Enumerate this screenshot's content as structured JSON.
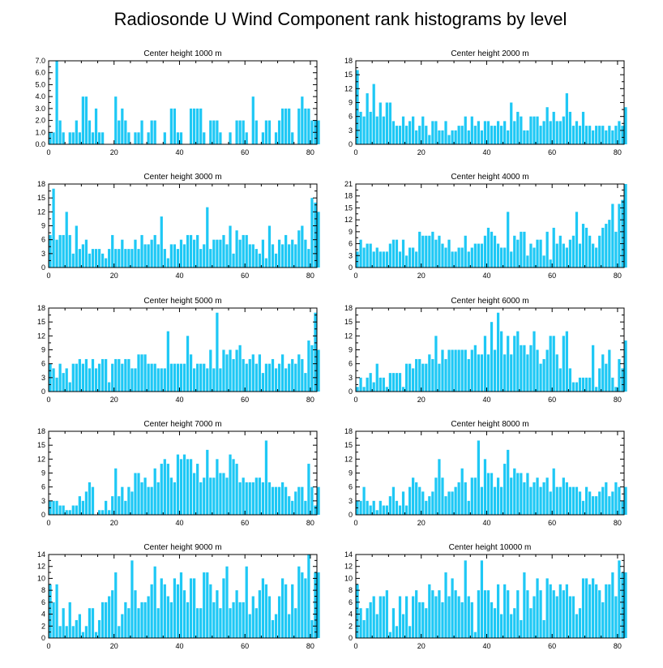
{
  "title": "Radiosonde U Wind Component rank histograms by level",
  "colors": {
    "bar": "#1ec8f5",
    "axis": "#000000"
  },
  "chart_data": [
    {
      "type": "bar",
      "title": "Center height 1000 m",
      "xlim": [
        0,
        82
      ],
      "ylim": [
        0,
        7
      ],
      "xticks": [
        0,
        20,
        40,
        60,
        80
      ],
      "yticks": [
        0,
        1,
        2,
        3,
        4,
        5,
        6,
        7
      ],
      "ytick_labels": [
        "0.0",
        "1.0",
        "2.0",
        "3.0",
        "4.0",
        "5.0",
        "6.0",
        "7.0"
      ],
      "values": [
        1,
        1,
        7,
        2,
        1,
        0,
        1,
        1,
        2,
        1,
        4,
        4,
        2,
        1,
        3,
        1,
        1,
        0,
        0,
        0,
        4,
        2,
        3,
        2,
        1,
        0,
        1,
        1,
        2,
        0,
        1,
        2,
        2,
        0,
        0,
        1,
        0,
        3,
        3,
        1,
        1,
        0,
        0,
        3,
        3,
        3,
        3,
        1,
        0,
        2,
        2,
        2,
        1,
        0,
        0,
        1,
        0,
        2,
        2,
        2,
        1,
        0,
        4,
        2,
        0,
        1,
        2,
        2,
        0,
        1,
        2,
        3,
        3,
        3,
        1,
        0,
        3,
        4,
        3,
        3,
        2,
        2,
        2
      ]
    },
    {
      "type": "bar",
      "title": "Center height 2000 m",
      "xlim": [
        0,
        82
      ],
      "ylim": [
        0,
        18
      ],
      "xticks": [
        0,
        20,
        40,
        60,
        80
      ],
      "yticks": [
        0,
        3,
        6,
        9,
        12,
        15,
        18
      ],
      "values": [
        16,
        7,
        6,
        11,
        7,
        13,
        6,
        9,
        6,
        9,
        9,
        5,
        4,
        4,
        6,
        4,
        5,
        6,
        3,
        4,
        6,
        4,
        2,
        5,
        5,
        3,
        3,
        5,
        2,
        3,
        3,
        4,
        4,
        6,
        3,
        6,
        4,
        5,
        3,
        5,
        5,
        4,
        4,
        5,
        4,
        5,
        3,
        9,
        5,
        7,
        6,
        3,
        3,
        6,
        6,
        6,
        4,
        5,
        8,
        5,
        7,
        5,
        5,
        6,
        11,
        7,
        4,
        5,
        4,
        7,
        4,
        4,
        3,
        4,
        4,
        4,
        3,
        4,
        3,
        4,
        5,
        4,
        8
      ]
    },
    {
      "type": "bar",
      "title": "Center height 3000 m",
      "xlim": [
        0,
        82
      ],
      "ylim": [
        0,
        18
      ],
      "xticks": [
        0,
        20,
        40,
        60,
        80
      ],
      "yticks": [
        0,
        3,
        6,
        9,
        12,
        15,
        18
      ],
      "values": [
        7,
        17,
        6,
        7,
        7,
        12,
        7,
        3,
        9,
        4,
        5,
        6,
        3,
        4,
        4,
        4,
        3,
        2,
        4,
        7,
        4,
        4,
        6,
        4,
        4,
        4,
        6,
        4,
        7,
        5,
        5,
        6,
        7,
        5,
        11,
        4,
        2,
        5,
        5,
        4,
        6,
        5,
        7,
        7,
        6,
        7,
        4,
        5,
        13,
        4,
        6,
        6,
        6,
        7,
        5,
        9,
        3,
        8,
        6,
        7,
        7,
        5,
        5,
        4,
        3,
        6,
        2,
        9,
        5,
        3,
        6,
        5,
        7,
        5,
        6,
        5,
        8,
        9,
        6,
        4,
        15,
        14,
        12
      ]
    },
    {
      "type": "bar",
      "title": "Center height 4000 m",
      "xlim": [
        0,
        82
      ],
      "ylim": [
        0,
        21
      ],
      "xticks": [
        0,
        20,
        40,
        60,
        80
      ],
      "yticks": [
        0,
        3,
        6,
        9,
        12,
        15,
        18,
        21
      ],
      "values": [
        4,
        7,
        5,
        6,
        6,
        4,
        5,
        4,
        4,
        4,
        6,
        7,
        7,
        4,
        7,
        3,
        5,
        5,
        4,
        9,
        8,
        8,
        8,
        9,
        7,
        8,
        6,
        5,
        7,
        4,
        4,
        5,
        5,
        8,
        4,
        5,
        6,
        6,
        6,
        8,
        10,
        9,
        8,
        6,
        5,
        5,
        14,
        4,
        8,
        7,
        9,
        9,
        3,
        6,
        5,
        7,
        7,
        3,
        9,
        2,
        10,
        6,
        8,
        6,
        5,
        7,
        8,
        14,
        6,
        11,
        10,
        8,
        6,
        5,
        8,
        10,
        11,
        12,
        16,
        9,
        16,
        17,
        21
      ]
    },
    {
      "type": "bar",
      "title": "Center height 5000 m",
      "xlim": [
        0,
        82
      ],
      "ylim": [
        0,
        18
      ],
      "xticks": [
        0,
        20,
        40,
        60,
        80
      ],
      "yticks": [
        0,
        3,
        6,
        9,
        12,
        15,
        18
      ],
      "values": [
        6,
        5,
        3,
        6,
        4,
        5,
        2,
        6,
        6,
        7,
        6,
        7,
        5,
        7,
        5,
        6,
        7,
        7,
        2,
        6,
        7,
        7,
        6,
        7,
        7,
        5,
        5,
        8,
        8,
        8,
        6,
        6,
        6,
        5,
        5,
        5,
        13,
        6,
        6,
        6,
        6,
        6,
        12,
        8,
        5,
        6,
        6,
        6,
        5,
        9,
        5,
        17,
        5,
        9,
        8,
        9,
        7,
        9,
        10,
        7,
        6,
        7,
        8,
        6,
        8,
        4,
        6,
        6,
        7,
        5,
        6,
        8,
        5,
        6,
        7,
        6,
        8,
        7,
        4,
        11,
        10,
        17,
        9
      ]
    },
    {
      "type": "bar",
      "title": "Center height 6000 m",
      "xlim": [
        0,
        82
      ],
      "ylim": [
        0,
        18
      ],
      "xticks": [
        0,
        20,
        40,
        60,
        80
      ],
      "yticks": [
        0,
        3,
        6,
        9,
        12,
        15,
        18
      ],
      "values": [
        1,
        3,
        1,
        3,
        4,
        2,
        6,
        3,
        3,
        1,
        4,
        4,
        4,
        4,
        1,
        6,
        6,
        5,
        7,
        7,
        6,
        6,
        8,
        7,
        12,
        6,
        9,
        7,
        9,
        9,
        9,
        9,
        9,
        9,
        7,
        9,
        10,
        8,
        8,
        12,
        8,
        15,
        9,
        17,
        13,
        8,
        12,
        8,
        12,
        13,
        10,
        10,
        8,
        10,
        13,
        9,
        6,
        7,
        9,
        12,
        12,
        8,
        5,
        12,
        13,
        5,
        2,
        2,
        3,
        3,
        3,
        3,
        10,
        1,
        5,
        8,
        6,
        9,
        3,
        1,
        7,
        5,
        11
      ]
    },
    {
      "type": "bar",
      "title": "Center height 7000 m",
      "xlim": [
        0,
        82
      ],
      "ylim": [
        0,
        18
      ],
      "xticks": [
        0,
        20,
        40,
        60,
        80
      ],
      "yticks": [
        0,
        3,
        6,
        9,
        12,
        15,
        18
      ],
      "values": [
        3,
        3,
        3,
        2,
        2,
        1,
        1,
        2,
        2,
        4,
        3,
        5,
        7,
        6,
        0,
        1,
        1,
        3,
        1,
        4,
        10,
        4,
        6,
        3,
        6,
        5,
        9,
        9,
        7,
        8,
        6,
        6,
        10,
        7,
        11,
        12,
        11,
        8,
        7,
        13,
        12,
        13,
        12,
        12,
        9,
        11,
        7,
        8,
        14,
        8,
        8,
        12,
        9,
        9,
        8,
        13,
        12,
        11,
        7,
        8,
        7,
        7,
        7,
        8,
        8,
        7,
        16,
        7,
        6,
        6,
        6,
        7,
        6,
        4,
        3,
        5,
        6,
        6,
        3,
        11,
        6,
        2,
        6
      ]
    },
    {
      "type": "bar",
      "title": "Center height 8000 m",
      "xlim": [
        0,
        82
      ],
      "ylim": [
        0,
        18
      ],
      "xticks": [
        0,
        20,
        40,
        60,
        80
      ],
      "yticks": [
        0,
        3,
        6,
        9,
        12,
        15,
        18
      ],
      "values": [
        3,
        3,
        6,
        3,
        2,
        3,
        1,
        3,
        2,
        2,
        4,
        6,
        3,
        2,
        5,
        2,
        6,
        8,
        7,
        6,
        5,
        3,
        4,
        5,
        8,
        12,
        8,
        4,
        5,
        5,
        6,
        7,
        10,
        7,
        3,
        8,
        8,
        16,
        6,
        12,
        9,
        9,
        6,
        8,
        6,
        11,
        14,
        8,
        10,
        9,
        9,
        7,
        9,
        6,
        7,
        8,
        6,
        7,
        8,
        5,
        10,
        6,
        6,
        8,
        7,
        6,
        6,
        6,
        5,
        3,
        6,
        5,
        4,
        4,
        5,
        6,
        7,
        4,
        5,
        7,
        6,
        3,
        6
      ]
    },
    {
      "type": "bar",
      "title": "Center height 9000 m",
      "xlim": [
        0,
        82
      ],
      "ylim": [
        0,
        14
      ],
      "xticks": [
        0,
        20,
        40,
        60,
        80
      ],
      "yticks": [
        0,
        2,
        4,
        6,
        8,
        10,
        12,
        14
      ],
      "values": [
        9,
        6,
        9,
        2,
        5,
        2,
        6,
        2,
        3,
        4,
        1,
        2,
        5,
        5,
        1,
        3,
        6,
        6,
        7,
        8,
        11,
        2,
        4,
        6,
        5,
        13,
        8,
        5,
        6,
        6,
        7,
        9,
        12,
        5,
        10,
        9,
        7,
        6,
        10,
        9,
        11,
        8,
        6,
        10,
        10,
        5,
        5,
        11,
        11,
        9,
        6,
        8,
        5,
        10,
        12,
        5,
        6,
        8,
        6,
        6,
        12,
        4,
        7,
        5,
        8,
        10,
        9,
        7,
        3,
        4,
        7,
        10,
        9,
        4,
        9,
        5,
        12,
        11,
        10,
        14,
        3,
        11,
        11
      ]
    },
    {
      "type": "bar",
      "title": "Center height 10000 m",
      "xlim": [
        0,
        82
      ],
      "ylim": [
        0,
        14
      ],
      "xticks": [
        0,
        20,
        40,
        60,
        80
      ],
      "yticks": [
        0,
        2,
        4,
        6,
        8,
        10,
        12,
        14
      ],
      "values": [
        9,
        5,
        3,
        5,
        6,
        7,
        4,
        7,
        7,
        8,
        1,
        5,
        2,
        7,
        4,
        7,
        2,
        7,
        8,
        6,
        6,
        5,
        9,
        8,
        7,
        8,
        6,
        11,
        7,
        10,
        8,
        7,
        6,
        13,
        7,
        6,
        1,
        8,
        13,
        8,
        8,
        6,
        5,
        9,
        4,
        9,
        8,
        4,
        5,
        8,
        3,
        11,
        8,
        5,
        7,
        10,
        8,
        3,
        10,
        9,
        8,
        7,
        9,
        8,
        9,
        7,
        7,
        4,
        5,
        10,
        10,
        9,
        10,
        9,
        8,
        6,
        9,
        9,
        11,
        7,
        13,
        11,
        11
      ]
    }
  ]
}
